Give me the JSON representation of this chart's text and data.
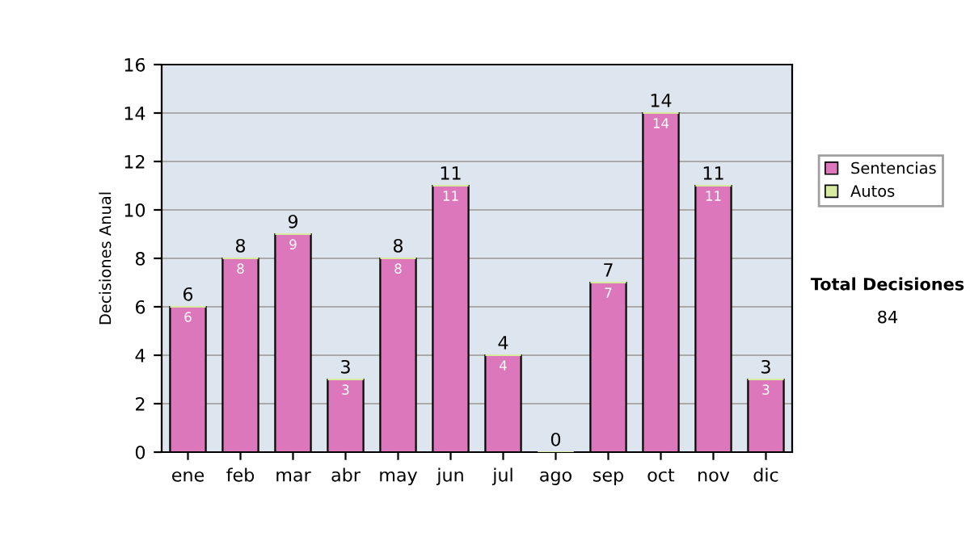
{
  "chart_data": {
    "type": "bar",
    "stacked": true,
    "ylabel": "Decisiones Anual",
    "categories": [
      "ene",
      "feb",
      "mar",
      "abr",
      "may",
      "jun",
      "jul",
      "ago",
      "sep",
      "oct",
      "nov",
      "dic"
    ],
    "series": [
      {
        "name": "Sentencias",
        "color": "#dd77bb",
        "values": [
          6,
          8,
          9,
          3,
          8,
          11,
          4,
          0,
          7,
          14,
          11,
          3
        ],
        "value_labels": [
          "6",
          "8",
          "9",
          "3",
          "8",
          "11",
          "4",
          null,
          "7",
          "14",
          "11",
          "3"
        ]
      },
      {
        "name": "Autos",
        "color": "#d8eaa0",
        "values": [
          0,
          0,
          0,
          0,
          0,
          0,
          0,
          0,
          0,
          0,
          0,
          0
        ]
      }
    ],
    "totals": [
      "6",
      "8",
      "9",
      "3",
      "8",
      "11",
      "4",
      "0",
      "7",
      "14",
      "11",
      "3"
    ],
    "ylim": [
      0,
      16
    ],
    "yticks": [
      0,
      2,
      4,
      6,
      8,
      10,
      12,
      14,
      16
    ],
    "grid": "y",
    "legend": "right",
    "annotations": [
      "Total Decisiones",
      "84"
    ]
  }
}
